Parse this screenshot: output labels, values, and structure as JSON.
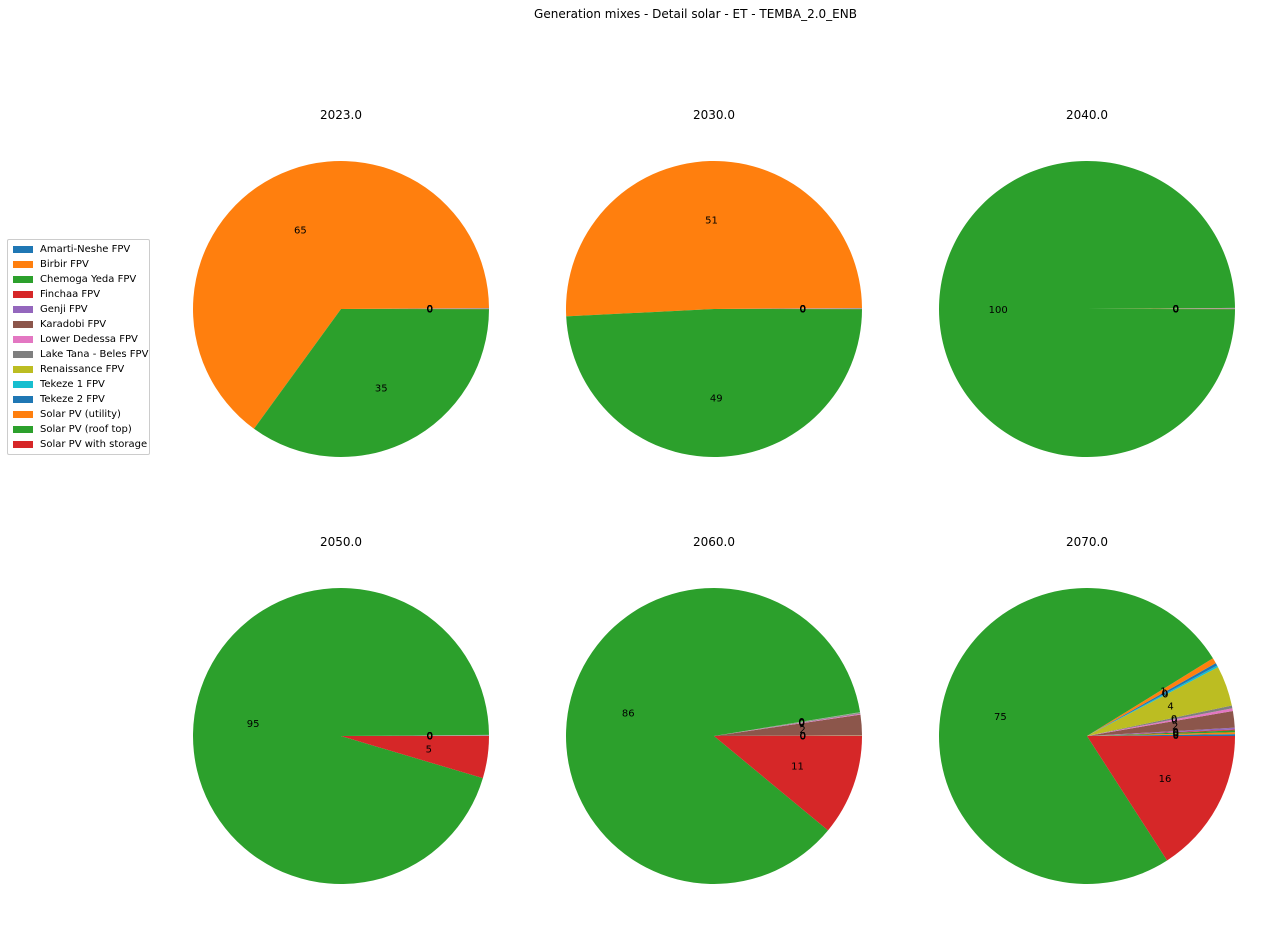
{
  "title": "Generation mixes - Detail solar - ET - TEMBA_2.0_ENB",
  "legend": [
    {
      "label": "Amarti-Neshe FPV",
      "color": "#1f77b4"
    },
    {
      "label": "Birbir FPV",
      "color": "#ff7f0e"
    },
    {
      "label": "Chemoga Yeda FPV",
      "color": "#2ca02c"
    },
    {
      "label": "Finchaa FPV",
      "color": "#d62728"
    },
    {
      "label": "Genji FPV",
      "color": "#9467bd"
    },
    {
      "label": "Karadobi FPV",
      "color": "#8c564b"
    },
    {
      "label": "Lower Dedessa FPV",
      "color": "#e377c2"
    },
    {
      "label": "Lake Tana - Beles FPV",
      "color": "#7f7f7f"
    },
    {
      "label": "Renaissance FPV",
      "color": "#bcbd22"
    },
    {
      "label": "Tekeze 1 FPV",
      "color": "#17becf"
    },
    {
      "label": "Tekeze 2 FPV",
      "color": "#1f77b4"
    },
    {
      "label": "Solar PV (utility)",
      "color": "#ff7f0e"
    },
    {
      "label": "Solar PV (roof top)",
      "color": "#2ca02c"
    },
    {
      "label": "Solar PV with storage",
      "color": "#d62728"
    }
  ],
  "chart_data": [
    {
      "type": "pie",
      "title": "2023.0",
      "slices": [
        {
          "label": "Amarti-Neshe FPV",
          "value": 0.01
        },
        {
          "label": "Birbir FPV",
          "value": 0.01
        },
        {
          "label": "Chemoga Yeda FPV",
          "value": 0.01
        },
        {
          "label": "Finchaa FPV",
          "value": 0.01
        },
        {
          "label": "Genji FPV",
          "value": 0.01
        },
        {
          "label": "Karadobi FPV",
          "value": 0.01
        },
        {
          "label": "Lower Dedessa FPV",
          "value": 0.01
        },
        {
          "label": "Lake Tana - Beles FPV",
          "value": 0.01
        },
        {
          "label": "Renaissance FPV",
          "value": 0.01
        },
        {
          "label": "Tekeze 1 FPV",
          "value": 0.01
        },
        {
          "label": "Tekeze 2 FPV",
          "value": 0.01
        },
        {
          "label": "Solar PV (utility)",
          "value": 64.9
        },
        {
          "label": "Solar PV (roof top)",
          "value": 35.0
        },
        {
          "label": "Solar PV with storage",
          "value": 0.01
        }
      ]
    },
    {
      "type": "pie",
      "title": "2030.0",
      "slices": [
        {
          "label": "Amarti-Neshe FPV",
          "value": 0.01
        },
        {
          "label": "Birbir FPV",
          "value": 0.01
        },
        {
          "label": "Chemoga Yeda FPV",
          "value": 0.01
        },
        {
          "label": "Finchaa FPV",
          "value": 0.01
        },
        {
          "label": "Genji FPV",
          "value": 0.01
        },
        {
          "label": "Karadobi FPV",
          "value": 0.01
        },
        {
          "label": "Lower Dedessa FPV",
          "value": 0.01
        },
        {
          "label": "Lake Tana - Beles FPV",
          "value": 0.01
        },
        {
          "label": "Renaissance FPV",
          "value": 0.01
        },
        {
          "label": "Tekeze 1 FPV",
          "value": 0.01
        },
        {
          "label": "Tekeze 2 FPV",
          "value": 0.01
        },
        {
          "label": "Solar PV (utility)",
          "value": 50.7
        },
        {
          "label": "Solar PV (roof top)",
          "value": 49.2
        },
        {
          "label": "Solar PV with storage",
          "value": 0.01
        }
      ]
    },
    {
      "type": "pie",
      "title": "2040.0",
      "slices": [
        {
          "label": "Amarti-Neshe FPV",
          "value": 0.01
        },
        {
          "label": "Birbir FPV",
          "value": 0.01
        },
        {
          "label": "Chemoga Yeda FPV",
          "value": 0.01
        },
        {
          "label": "Finchaa FPV",
          "value": 0.01
        },
        {
          "label": "Genji FPV",
          "value": 0.01
        },
        {
          "label": "Karadobi FPV",
          "value": 0.01
        },
        {
          "label": "Lower Dedessa FPV",
          "value": 0.01
        },
        {
          "label": "Lake Tana - Beles FPV",
          "value": 0.01
        },
        {
          "label": "Renaissance FPV",
          "value": 0.01
        },
        {
          "label": "Tekeze 1 FPV",
          "value": 0.01
        },
        {
          "label": "Tekeze 2 FPV",
          "value": 0.01
        },
        {
          "label": "Solar PV (utility)",
          "value": 0.01
        },
        {
          "label": "Solar PV (roof top)",
          "value": 99.9
        },
        {
          "label": "Solar PV with storage",
          "value": 0.01
        }
      ]
    },
    {
      "type": "pie",
      "title": "2050.0",
      "slices": [
        {
          "label": "Amarti-Neshe FPV",
          "value": 0.01
        },
        {
          "label": "Birbir FPV",
          "value": 0.01
        },
        {
          "label": "Chemoga Yeda FPV",
          "value": 0.01
        },
        {
          "label": "Finchaa FPV",
          "value": 0.01
        },
        {
          "label": "Genji FPV",
          "value": 0.01
        },
        {
          "label": "Karadobi FPV",
          "value": 0.01
        },
        {
          "label": "Lower Dedessa FPV",
          "value": 0.01
        },
        {
          "label": "Lake Tana - Beles FPV",
          "value": 0.01
        },
        {
          "label": "Renaissance FPV",
          "value": 0.01
        },
        {
          "label": "Tekeze 1 FPV",
          "value": 0.01
        },
        {
          "label": "Tekeze 2 FPV",
          "value": 0.01
        },
        {
          "label": "Solar PV (utility)",
          "value": 0.01
        },
        {
          "label": "Solar PV (roof top)",
          "value": 95.3
        },
        {
          "label": "Solar PV with storage",
          "value": 4.6
        }
      ]
    },
    {
      "type": "pie",
      "title": "2060.0",
      "slices": [
        {
          "label": "Amarti-Neshe FPV",
          "value": 0.02
        },
        {
          "label": "Birbir FPV",
          "value": 0.02
        },
        {
          "label": "Chemoga Yeda FPV",
          "value": 0.02
        },
        {
          "label": "Finchaa FPV",
          "value": 0.02
        },
        {
          "label": "Genji FPV",
          "value": 0.02
        },
        {
          "label": "Karadobi FPV",
          "value": 2.2
        },
        {
          "label": "Lower Dedessa FPV",
          "value": 0.1
        },
        {
          "label": "Lake Tana - Beles FPV",
          "value": 0.1
        },
        {
          "label": "Renaissance FPV",
          "value": 0.02
        },
        {
          "label": "Tekeze 1 FPV",
          "value": 0.02
        },
        {
          "label": "Tekeze 2 FPV",
          "value": 0.02
        },
        {
          "label": "Solar PV (utility)",
          "value": 0.02
        },
        {
          "label": "Solar PV (roof top)",
          "value": 86.4
        },
        {
          "label": "Solar PV with storage",
          "value": 11.0
        }
      ]
    },
    {
      "type": "pie",
      "title": "2070.0",
      "slices": [
        {
          "label": "Amarti-Neshe FPV",
          "value": 0.2
        },
        {
          "label": "Birbir FPV",
          "value": 0.2
        },
        {
          "label": "Chemoga Yeda FPV",
          "value": 0.2
        },
        {
          "label": "Finchaa FPV",
          "value": 0.1
        },
        {
          "label": "Genji FPV",
          "value": 0.2
        },
        {
          "label": "Karadobi FPV",
          "value": 1.8
        },
        {
          "label": "Lower Dedessa FPV",
          "value": 0.3
        },
        {
          "label": "Lake Tana - Beles FPV",
          "value": 0.3
        },
        {
          "label": "Renaissance FPV",
          "value": 4.4
        },
        {
          "label": "Tekeze 1 FPV",
          "value": 0.2
        },
        {
          "label": "Tekeze 2 FPV",
          "value": 0.3
        },
        {
          "label": "Solar PV (utility)",
          "value": 0.6
        },
        {
          "label": "Solar PV (roof top)",
          "value": 75.3
        },
        {
          "label": "Solar PV with storage",
          "value": 15.9
        }
      ]
    }
  ]
}
